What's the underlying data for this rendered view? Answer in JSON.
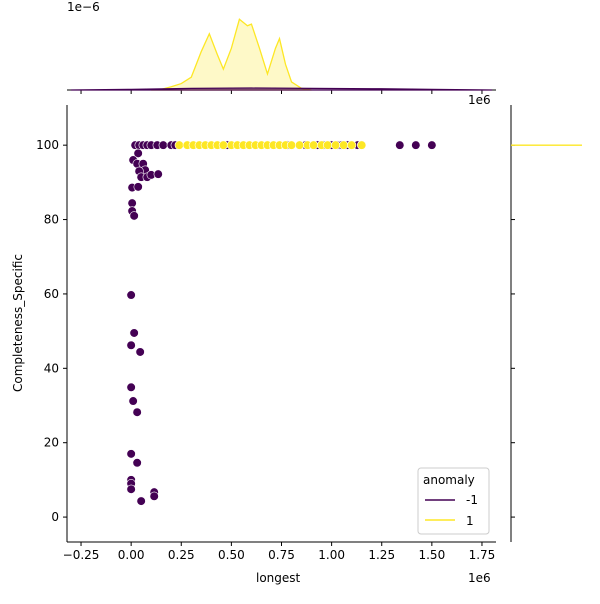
{
  "chart_data": {
    "type": "scatter",
    "xlabel": "longest",
    "ylabel": "Completeness_Specific",
    "x_offset_label": "1e6",
    "top_offset_label": "1e6",
    "kde_offset_label": "1e−6",
    "xlim": [
      -0.32,
      1.82
    ],
    "ylim": [
      -6.7,
      110.8
    ],
    "xticks": [
      -0.25,
      0.0,
      0.25,
      0.5,
      0.75,
      1.0,
      1.25,
      1.5,
      1.75
    ],
    "xtick_labels": [
      "−0.25",
      "0.00",
      "0.25",
      "0.50",
      "0.75",
      "1.00",
      "1.25",
      "1.50",
      "1.75"
    ],
    "yticks": [
      0,
      20,
      40,
      60,
      80,
      100
    ],
    "ytick_labels": [
      "0",
      "20",
      "40",
      "60",
      "80",
      "100"
    ],
    "legend": {
      "title": "anomaly",
      "placement": "lower-right",
      "entries": [
        {
          "label": "-1",
          "color": "#440154"
        },
        {
          "label": "1",
          "color": "#fde725"
        }
      ]
    },
    "series": [
      {
        "name": "-1",
        "color": "#440154",
        "points": [
          [
            0.02,
            100
          ],
          [
            0.04,
            100
          ],
          [
            0.06,
            100
          ],
          [
            0.08,
            100
          ],
          [
            0.1,
            100
          ],
          [
            0.13,
            100
          ],
          [
            0.16,
            100
          ],
          [
            0.2,
            100
          ],
          [
            0.22,
            100
          ],
          [
            0.48,
            100
          ],
          [
            0.78,
            100
          ],
          [
            0.87,
            100
          ],
          [
            0.93,
            100
          ],
          [
            0.96,
            100
          ],
          [
            1.0,
            100
          ],
          [
            1.03,
            100
          ],
          [
            1.05,
            100
          ],
          [
            1.08,
            100
          ],
          [
            1.1,
            100
          ],
          [
            1.13,
            100
          ],
          [
            1.15,
            100
          ],
          [
            1.34,
            100
          ],
          [
            1.42,
            100
          ],
          [
            1.5,
            100
          ],
          [
            0.035,
            97.8
          ],
          [
            0.01,
            96
          ],
          [
            0.03,
            95
          ],
          [
            0.06,
            95
          ],
          [
            0.07,
            93.3
          ],
          [
            0.04,
            93
          ],
          [
            0.05,
            91.4
          ],
          [
            0.08,
            91.4
          ],
          [
            0.1,
            92
          ],
          [
            0.135,
            92.2
          ],
          [
            0.005,
            88.6
          ],
          [
            0.035,
            88.8
          ],
          [
            0.005,
            84.4
          ],
          [
            0.005,
            82.3
          ],
          [
            0.015,
            81
          ],
          [
            0,
            59.7
          ],
          [
            0.015,
            49.5
          ],
          [
            0,
            46.2
          ],
          [
            0.045,
            44.4
          ],
          [
            0,
            34.9
          ],
          [
            0.01,
            31.2
          ],
          [
            0.03,
            28.2
          ],
          [
            0,
            17
          ],
          [
            0.03,
            14.6
          ],
          [
            0,
            10
          ],
          [
            0,
            9
          ],
          [
            0,
            7.5
          ],
          [
            0.115,
            6.7
          ],
          [
            0.115,
            5.6
          ],
          [
            0.05,
            4.3
          ]
        ]
      },
      {
        "name": "1",
        "color": "#fde725",
        "points": [
          [
            0.24,
            100
          ],
          [
            0.28,
            100
          ],
          [
            0.31,
            100
          ],
          [
            0.34,
            100
          ],
          [
            0.37,
            100
          ],
          [
            0.4,
            100
          ],
          [
            0.43,
            100
          ],
          [
            0.46,
            100
          ],
          [
            0.5,
            100
          ],
          [
            0.53,
            100
          ],
          [
            0.56,
            100
          ],
          [
            0.59,
            100
          ],
          [
            0.62,
            100
          ],
          [
            0.65,
            100
          ],
          [
            0.68,
            100
          ],
          [
            0.71,
            100
          ],
          [
            0.74,
            100
          ],
          [
            0.77,
            100
          ],
          [
            0.8,
            100
          ],
          [
            0.84,
            100
          ],
          [
            0.88,
            100
          ],
          [
            0.91,
            100
          ],
          [
            0.95,
            100
          ],
          [
            0.98,
            100
          ],
          [
            1.02,
            100
          ],
          [
            1.06,
            100
          ],
          [
            1.1,
            100
          ],
          [
            1.15,
            100
          ]
        ]
      }
    ],
    "top_kde": {
      "ylim": [
        0,
        2.8
      ],
      "series": [
        {
          "name": "1",
          "color": "#fde725",
          "x": [
            0.1,
            0.15,
            0.2,
            0.25,
            0.3,
            0.35,
            0.39,
            0.43,
            0.46,
            0.5,
            0.54,
            0.58,
            0.6,
            0.64,
            0.68,
            0.72,
            0.74,
            0.77,
            0.8,
            0.85,
            0.9
          ],
          "y": [
            0,
            0.02,
            0.1,
            0.2,
            0.4,
            1.2,
            1.75,
            1.1,
            0.65,
            1.3,
            2.2,
            2.0,
            2.05,
            1.3,
            0.5,
            1.3,
            1.6,
            0.8,
            0.25,
            0.05,
            0
          ]
        },
        {
          "name": "-1",
          "color": "#440154",
          "x": [
            -0.3,
            0,
            0.3,
            0.6,
            0.9,
            1.2,
            1.5,
            1.8
          ],
          "y": [
            0,
            0.02,
            0.05,
            0.06,
            0.05,
            0.04,
            0.02,
            0
          ]
        }
      ]
    },
    "right_kde": {
      "note_value": 100,
      "color": "#fde725"
    }
  }
}
